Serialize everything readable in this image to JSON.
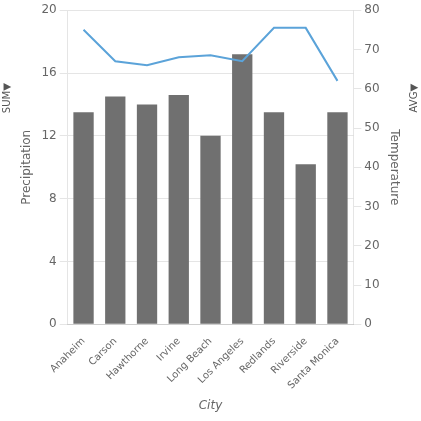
{
  "chart_data": {
    "type": "bar",
    "categories": [
      "Anaheim",
      "Carson",
      "Hawthorne",
      "Irvine",
      "Long Beach",
      "Los Angeles",
      "Redlands",
      "Riverside",
      "Santa Monica"
    ],
    "series": [
      {
        "type": "bar",
        "color": "#707070",
        "values": [
          13.5,
          14.5,
          14.0,
          14.6,
          12.0,
          17.2,
          13.5,
          10.2,
          13.5
        ]
      },
      {
        "type": "line",
        "color": "#5BA3D9",
        "axis": "y2",
        "values": [
          75.0,
          67.0,
          66.0,
          68.0,
          68.5,
          67.0,
          75.5,
          75.5,
          62.0
        ]
      }
    ],
    "xlabel": "City",
    "ylabel": "Precipitation",
    "y2label": "Temperature",
    "ylim": [
      0,
      20
    ],
    "yticks": [
      0,
      4,
      8,
      12,
      16,
      20
    ],
    "y2lim": [
      0,
      80
    ],
    "y2ticks": [
      0,
      10,
      20,
      30,
      40,
      50,
      60,
      70,
      80
    ],
    "grid": true,
    "annotations": [
      "SUM▼",
      "AVG▼"
    ]
  }
}
